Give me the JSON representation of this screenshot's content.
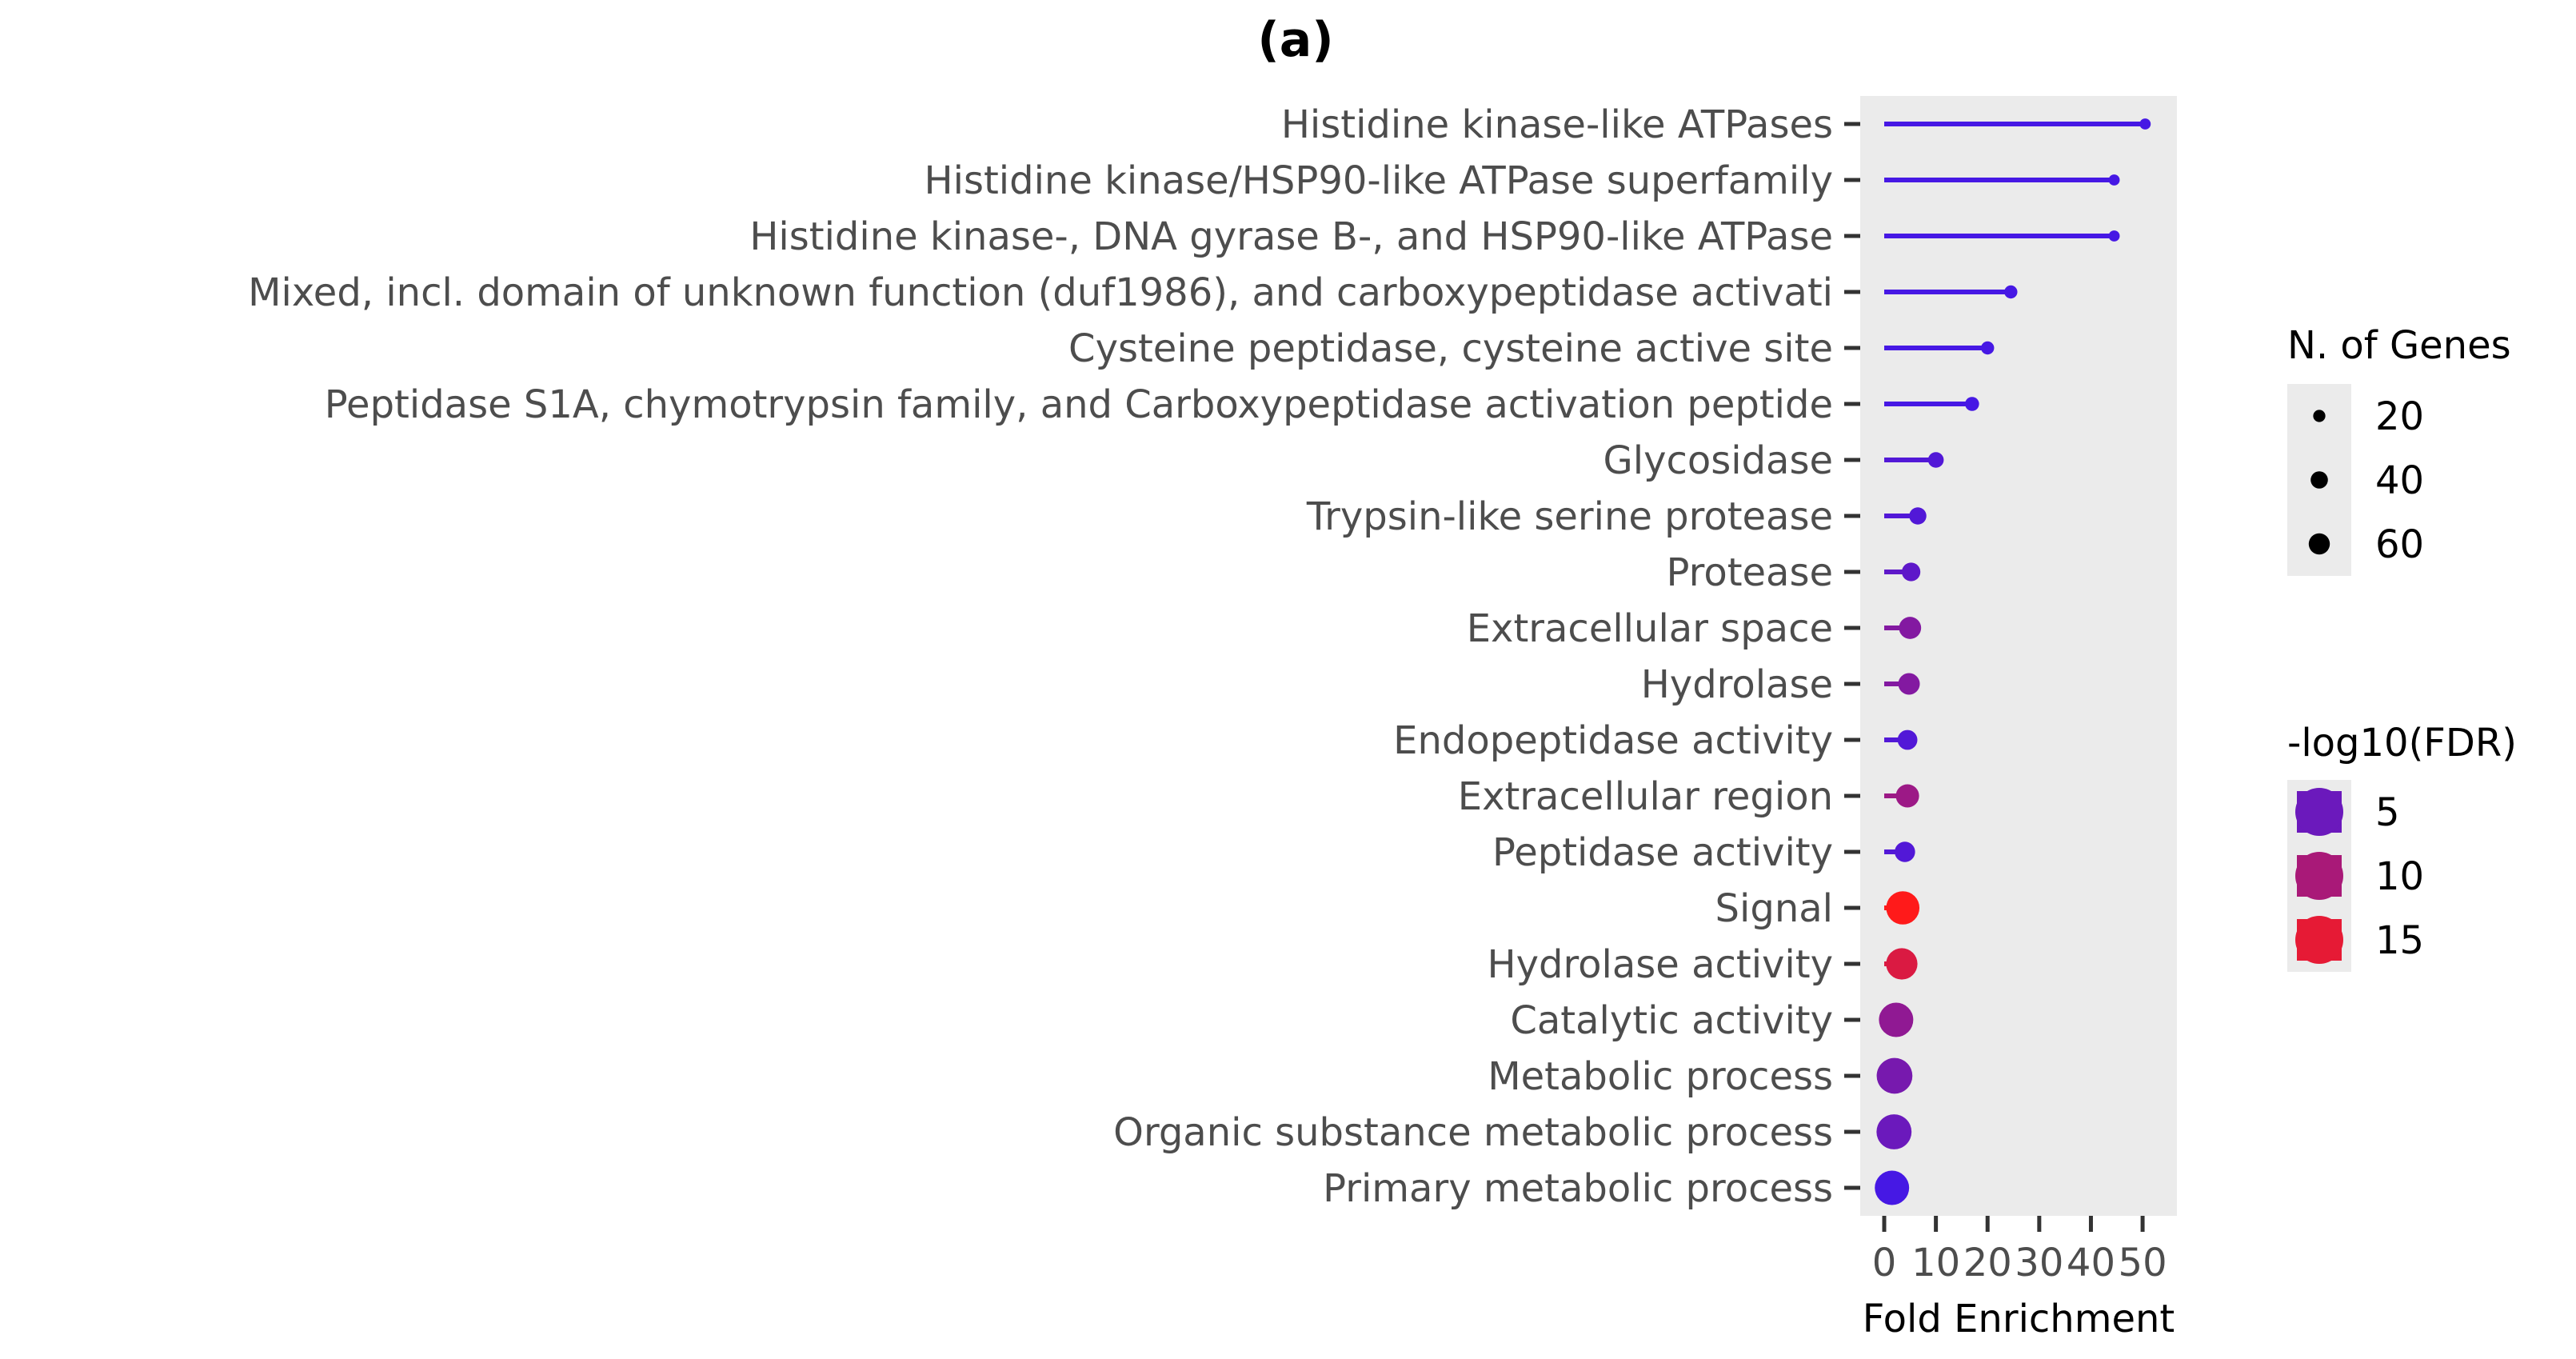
{
  "figure_label": "(a)",
  "chart_data": {
    "type": "lollipop",
    "orientation": "horizontal",
    "categories": [
      "Histidine kinase-like ATPases",
      "Histidine kinase/HSP90-like ATPase superfamily",
      "Histidine kinase-, DNA gyrase B-, and HSP90-like ATPase",
      "Mixed, incl. domain of unknown function (duf1986), and carboxypeptidase activati",
      "Cysteine peptidase, cysteine active site",
      "Peptidase S1A, chymotrypsin family, and Carboxypeptidase activation peptide",
      "Glycosidase",
      "Trypsin-like serine protease",
      "Protease",
      "Extracellular space",
      "Hydrolase",
      "Endopeptidase activity",
      "Extracellular region",
      "Peptidase activity",
      "Signal",
      "Hydrolase activity",
      "Catalytic activity",
      "Metabolic process",
      "Organic substance metabolic process",
      "Primary metabolic process"
    ],
    "fold_enrichment": [
      50.5,
      44.5,
      44.5,
      24.5,
      20.0,
      17.0,
      10.0,
      6.5,
      5.2,
      5.0,
      4.8,
      4.5,
      4.5,
      4.0,
      3.6,
      3.4,
      2.3,
      2.0,
      1.9,
      1.5
    ],
    "n_genes": [
      5,
      5,
      5,
      7,
      7,
      8,
      10,
      12,
      14,
      20,
      19,
      16,
      22,
      17,
      45,
      40,
      48,
      52,
      50,
      48
    ],
    "neg_log10_fdr": [
      2,
      2,
      2,
      2,
      2,
      2,
      3,
      3,
      4,
      7,
      7,
      3,
      9,
      3,
      17,
      14,
      8,
      6,
      5,
      2
    ],
    "xlabel": "Fold Enrichment",
    "ylabel": "",
    "xlim": [
      0,
      52
    ],
    "xticks": [
      0,
      10,
      20,
      30,
      40,
      50
    ],
    "panel_background": "#ebebeb",
    "grid": false,
    "legend_position": "right",
    "size_legend": {
      "title": "N. of Genes",
      "values": [
        20,
        40,
        60
      ]
    },
    "color_legend": {
      "title": "-log10(FDR)",
      "values": [
        5,
        10,
        15
      ],
      "scale_low": 0,
      "scale_high": 17,
      "color_low": "#2d18ff",
      "color_high": "#ff1a1a"
    }
  }
}
